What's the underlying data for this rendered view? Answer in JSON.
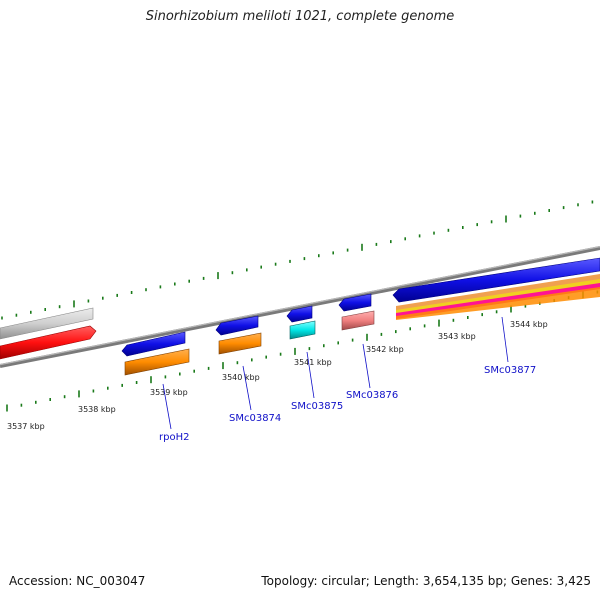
{
  "title": "Sinorhizobium meliloti 1021, complete genome",
  "footer": {
    "accession": "Accession: NC_003047",
    "summary": "Topology: circular; Length: 3,654,135 bp; Genes: 3,425"
  },
  "ruler": {
    "labels": [
      "3537 kbp",
      "3538 kbp",
      "3539 kbp",
      "3540 kbp",
      "3541 kbp",
      "3542 kbp",
      "3543 kbp",
      "3544 kbp"
    ],
    "tick_color": "#1a7a1a"
  },
  "backbone_color": "#7a7a7a",
  "gene_labels": [
    "rpoH2",
    "SMc03874",
    "SMc03875",
    "SMc03876",
    "SMc03877"
  ],
  "feature_colors": {
    "gene": "#1010e6",
    "cds": "#ff8c00",
    "rrna": "#00e6e6",
    "trna": "#f08080",
    "pseudo": "#d0d0d0",
    "misc": "#ff1010",
    "overlay_orange": "#f0a050",
    "overlay_yellow": "#f0d020",
    "overlay_magenta": "#ff1493"
  }
}
